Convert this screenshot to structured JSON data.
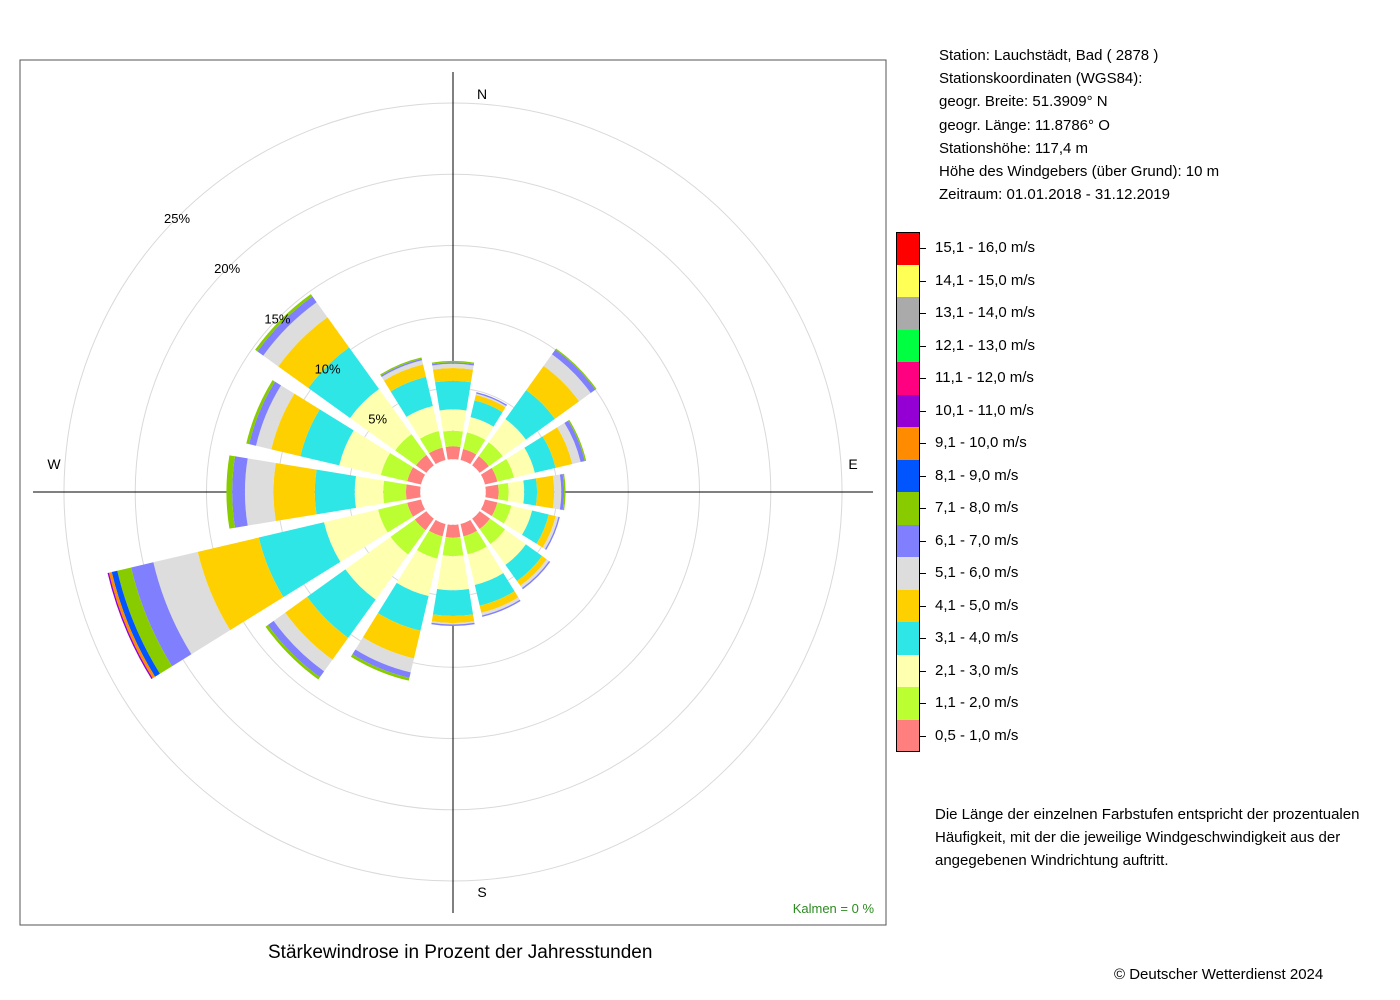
{
  "station": {
    "line1": "Station:  Lauchstädt, Bad  ( 2878 )",
    "line2": "Stationskoordinaten (WGS84):",
    "line3": "geogr. Breite: 51.3909° N",
    "line4": "geogr. Länge: 11.8786° O",
    "line5": "Stationshöhe: 117,4 m",
    "line6": "Höhe des Windgebers (über Grund): 10 m",
    "line7": "Zeitraum: 01.01.2018 - 31.12.2019"
  },
  "legend": [
    {
      "label": "15,1 - 16,0 m/s",
      "color": "#ff0000"
    },
    {
      "label": "14,1 - 15,0 m/s",
      "color": "#ffff55"
    },
    {
      "label": "13,1 - 14,0 m/s",
      "color": "#aaaaaa"
    },
    {
      "label": "12,1 - 13,0 m/s",
      "color": "#00ff40"
    },
    {
      "label": "11,1 - 12,0 m/s",
      "color": "#ff0080"
    },
    {
      "label": "10,1 - 11,0 m/s",
      "color": "#9400d3"
    },
    {
      "label": "9,1 - 10,0 m/s",
      "color": "#ff8c00"
    },
    {
      "label": "8,1 - 9,0 m/s",
      "color": "#0055ff"
    },
    {
      "label": "7,1 - 8,0 m/s",
      "color": "#88cc00"
    },
    {
      "label": "6,1 - 7,0 m/s",
      "color": "#8080ff"
    },
    {
      "label": "5,1 - 6,0 m/s",
      "color": "#dddddd"
    },
    {
      "label": "4,1 - 5,0 m/s",
      "color": "#ffd000"
    },
    {
      "label": "3,1 - 4,0 m/s",
      "color": "#2ee6e6"
    },
    {
      "label": "2,1 - 3,0 m/s",
      "color": "#ffffb0"
    },
    {
      "label": "1,1 - 2,0 m/s",
      "color": "#bbff33"
    },
    {
      "label": "0,5 - 1,0 m/s",
      "color": "#ff7f7f"
    }
  ],
  "note": "Die Länge der einzelnen Farbstufen entspricht der prozentualen Häufigkeit, mit der die jeweilige Windgeschwindigkeit aus der angegebenen Windrichtung auftritt.",
  "caption": "Stärkewindrose in Prozent der Jahresstunden",
  "copyright": "© Deutscher Wetterdienst  2024",
  "kalmen": "Kalmen  =  0 %",
  "chart_data": {
    "type": "wind-rose",
    "title": "Stärkewindrose in Prozent der Jahresstunden",
    "radial_unit": "%",
    "radial_labels": [
      "5%",
      "10%",
      "15%",
      "20%",
      "25%"
    ],
    "radial_ticks": [
      5,
      10,
      15,
      20,
      25
    ],
    "inner_offset": 2.3,
    "compass_labels": {
      "N": "N",
      "E": "E",
      "S": "S",
      "W": "W"
    },
    "directions": [
      "N",
      "NNE",
      "NE",
      "ENE",
      "E",
      "ESE",
      "SE",
      "SSE",
      "S",
      "SSW",
      "SW",
      "WSW",
      "W",
      "WNW",
      "NW",
      "NNW"
    ],
    "direction_angles": [
      0,
      22.5,
      45,
      67.5,
      90,
      112.5,
      135,
      157.5,
      180,
      202.5,
      225,
      247.5,
      270,
      292.5,
      315,
      337.5
    ],
    "speed_classes": [
      "0,5 - 1,0 m/s",
      "1,1 - 2,0 m/s",
      "2,1 - 3,0 m/s",
      "3,1 - 4,0 m/s",
      "4,1 - 5,0 m/s",
      "5,1 - 6,0 m/s",
      "6,1 - 7,0 m/s",
      "7,1 - 8,0 m/s",
      "8,1 - 9,0 m/s",
      "9,1 - 10,0 m/s",
      "10,1 - 11,0 m/s",
      "11,1 - 12,0 m/s",
      "12,1 - 13,0 m/s",
      "13,1 - 14,0 m/s",
      "14,1 - 15,0 m/s",
      "15,1 - 16,0 m/s"
    ],
    "cumulative_percent": [
      [
        0.9,
        2.0,
        3.5,
        5.5,
        6.4,
        6.7,
        6.8,
        6.9
      ],
      [
        0.8,
        2.0,
        3.1,
        4.3,
        4.7,
        4.8,
        4.9
      ],
      [
        0.8,
        2.0,
        4.0,
        6.5,
        8.6,
        9.6,
        10.0,
        10.1
      ],
      [
        0.9,
        2.1,
        3.6,
        5.1,
        6.3,
        6.9,
        7.2,
        7.3
      ],
      [
        0.9,
        1.6,
        2.7,
        3.6,
        4.8,
        5.3,
        5.5,
        5.6
      ],
      [
        0.9,
        1.9,
        3.4,
        4.6,
        5.1,
        5.3,
        5.4
      ],
      [
        0.9,
        2.2,
        4.0,
        5.4,
        5.8,
        6.0,
        6.1
      ],
      [
        0.9,
        2.2,
        4.4,
        5.9,
        6.4,
        6.6,
        6.7
      ],
      [
        0.9,
        2.2,
        4.6,
        6.4,
        6.9,
        7.0,
        7.1
      ],
      [
        0.9,
        2.5,
        5.2,
        7.7,
        9.7,
        10.7,
        11.1,
        11.3
      ],
      [
        1.0,
        3.1,
        7.0,
        10.3,
        12.2,
        13.2,
        13.7,
        13.9
      ],
      [
        1.0,
        3.1,
        7.0,
        11.7,
        16.1,
        19.3,
        20.9,
        21.9,
        22.3,
        22.5,
        22.6
      ],
      [
        1.0,
        2.6,
        4.6,
        7.4,
        10.3,
        12.3,
        13.2,
        13.6
      ],
      [
        1.0,
        2.9,
        5.9,
        8.7,
        10.8,
        11.9,
        12.4,
        12.6
      ],
      [
        0.9,
        2.7,
        6.6,
        10.2,
        12.8,
        14.1,
        14.6,
        14.8
      ],
      [
        0.9,
        2.1,
        3.9,
        6.0,
        6.9,
        7.2,
        7.3,
        7.4
      ]
    ]
  }
}
